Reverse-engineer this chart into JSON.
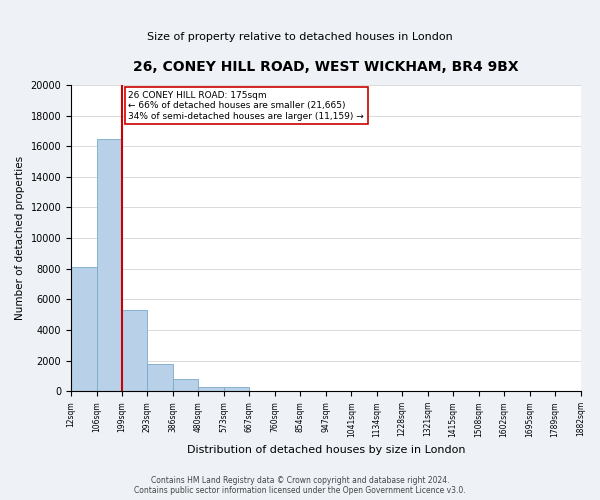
{
  "title": "26, CONEY HILL ROAD, WEST WICKHAM, BR4 9BX",
  "subtitle": "Size of property relative to detached houses in London",
  "xlabel": "Distribution of detached houses by size in London",
  "ylabel": "Number of detached properties",
  "bin_edges": [
    "12sqm",
    "106sqm",
    "199sqm",
    "293sqm",
    "386sqm",
    "480sqm",
    "573sqm",
    "667sqm",
    "760sqm",
    "854sqm",
    "947sqm",
    "1041sqm",
    "1134sqm",
    "1228sqm",
    "1321sqm",
    "1415sqm",
    "1508sqm",
    "1602sqm",
    "1695sqm",
    "1789sqm",
    "1882sqm"
  ],
  "bar_values": [
    8100,
    16500,
    5300,
    1800,
    800,
    300,
    300,
    0,
    0,
    0,
    0,
    0,
    0,
    0,
    0,
    0,
    0,
    0,
    0,
    0
  ],
  "bar_color": "#b8d0e8",
  "bar_edge_color": "#7aaac8",
  "vline_x": 2,
  "vline_color": "#cc0000",
  "annotation_title": "26 CONEY HILL ROAD: 175sqm",
  "annotation_smaller": "← 66% of detached houses are smaller (21,665)",
  "annotation_larger": "34% of semi-detached houses are larger (11,159) →",
  "annotation_box_facecolor": "#ffffff",
  "annotation_box_edgecolor": "#cc0000",
  "ylim": [
    0,
    20000
  ],
  "yticks": [
    0,
    2000,
    4000,
    6000,
    8000,
    10000,
    12000,
    14000,
    16000,
    18000,
    20000
  ],
  "bg_color": "#eef2f7",
  "plot_bg_color": "#ffffff",
  "footer_line1": "Contains HM Land Registry data © Crown copyright and database right 2024.",
  "footer_line2": "Contains public sector information licensed under the Open Government Licence v3.0."
}
